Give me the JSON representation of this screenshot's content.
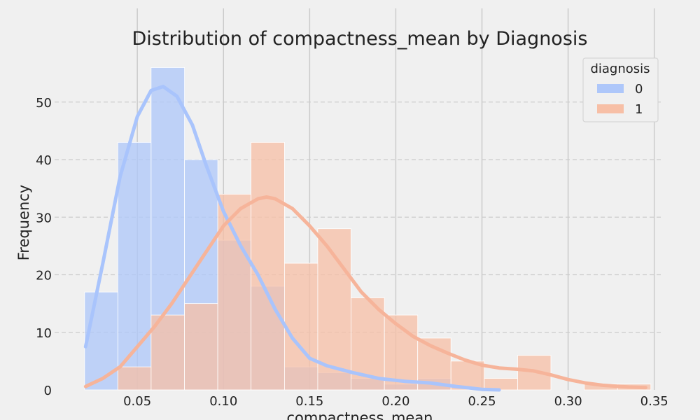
{
  "chart_data": {
    "type": "histogram",
    "title": "Distribution of compactness_mean by Diagnosis",
    "xlabel": "compactness_mean",
    "ylabel": "Frequency",
    "xlim": [
      0.015,
      0.355
    ],
    "ylim": [
      0,
      58
    ],
    "x_ticks": [
      0.05,
      0.1,
      0.15,
      0.2,
      0.25,
      0.3,
      0.35
    ],
    "x_tick_labels": [
      "0.05",
      "0.10",
      "0.15",
      "0.20",
      "0.25",
      "0.30",
      "0.35"
    ],
    "y_ticks": [
      0,
      10,
      20,
      30,
      40,
      50
    ],
    "y_tick_labels": [
      "0",
      "10",
      "20",
      "30",
      "40",
      "50"
    ],
    "bin_edges": [
      0.0194,
      0.0387,
      0.058,
      0.0774,
      0.0967,
      0.116,
      0.1354,
      0.1547,
      0.174,
      0.1934,
      0.2127,
      0.232,
      0.2514,
      0.2707,
      0.29,
      0.3094,
      0.3287,
      0.348
    ],
    "legend": {
      "title": "diagnosis",
      "placement": "top-right"
    },
    "series": [
      {
        "name": "0",
        "color": "#aec7fa",
        "kde_color": "#a9c4fc",
        "counts": [
          17,
          43,
          56,
          40,
          26,
          18,
          4,
          3,
          2,
          1,
          2,
          0,
          0,
          0,
          0,
          0,
          0
        ],
        "kde": [
          [
            0.02,
            7.5
          ],
          [
            0.03,
            22
          ],
          [
            0.04,
            37
          ],
          [
            0.05,
            47.5
          ],
          [
            0.058,
            52
          ],
          [
            0.065,
            52.7
          ],
          [
            0.073,
            51
          ],
          [
            0.082,
            46
          ],
          [
            0.09,
            39
          ],
          [
            0.1,
            31
          ],
          [
            0.11,
            25
          ],
          [
            0.12,
            20
          ],
          [
            0.13,
            14
          ],
          [
            0.14,
            9
          ],
          [
            0.15,
            5.5
          ],
          [
            0.16,
            4.2
          ],
          [
            0.175,
            3
          ],
          [
            0.19,
            2
          ],
          [
            0.205,
            1.5
          ],
          [
            0.22,
            1.2
          ],
          [
            0.235,
            0.6
          ],
          [
            0.25,
            0.1
          ],
          [
            0.26,
            0
          ]
        ]
      },
      {
        "name": "1",
        "color": "#f7bfa6",
        "kde_color": "#f6b49a",
        "counts": [
          0,
          4,
          13,
          15,
          34,
          43,
          22,
          28,
          16,
          13,
          9,
          5,
          2,
          6,
          0,
          1,
          1
        ],
        "kde": [
          [
            0.02,
            0.6
          ],
          [
            0.03,
            2
          ],
          [
            0.04,
            4
          ],
          [
            0.05,
            7.5
          ],
          [
            0.06,
            11
          ],
          [
            0.07,
            15
          ],
          [
            0.08,
            19.5
          ],
          [
            0.09,
            24
          ],
          [
            0.1,
            28.5
          ],
          [
            0.11,
            31.5
          ],
          [
            0.12,
            33.2
          ],
          [
            0.125,
            33.5
          ],
          [
            0.13,
            33.2
          ],
          [
            0.14,
            31.5
          ],
          [
            0.15,
            28.5
          ],
          [
            0.16,
            25
          ],
          [
            0.17,
            21
          ],
          [
            0.18,
            17
          ],
          [
            0.19,
            14
          ],
          [
            0.2,
            11.5
          ],
          [
            0.21,
            9.3
          ],
          [
            0.22,
            7.7
          ],
          [
            0.23,
            6.4
          ],
          [
            0.24,
            5.2
          ],
          [
            0.25,
            4.3
          ],
          [
            0.26,
            3.8
          ],
          [
            0.27,
            3.6
          ],
          [
            0.28,
            3.3
          ],
          [
            0.29,
            2.6
          ],
          [
            0.3,
            1.8
          ],
          [
            0.31,
            1.2
          ],
          [
            0.32,
            0.8
          ],
          [
            0.335,
            0.5
          ],
          [
            0.345,
            0.4
          ]
        ]
      }
    ],
    "grid": true
  }
}
